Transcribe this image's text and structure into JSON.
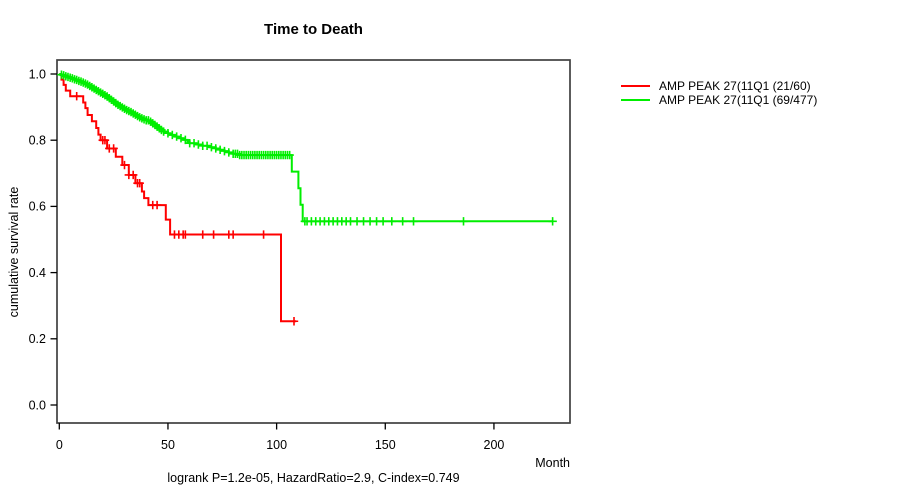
{
  "title": "Time to Death",
  "axes": {
    "xlabel": "Month",
    "ylabel": "cumulative survival rate"
  },
  "footer": "logrank P=1.2e-05, HazardRatio=2.9, C-index=0.749",
  "legend": {
    "items": [
      {
        "label": "AMP PEAK 27(11Q1 (21/60)",
        "color": "#ff0000"
      },
      {
        "label": "AMP PEAK 27(11Q1 (69/477)",
        "color": "#00ee00"
      }
    ]
  },
  "chart_data": {
    "type": "line",
    "subtype": "kaplan-meier-step",
    "title": "Time to Death",
    "xlabel": "Month",
    "ylabel": "cumulative survival rate",
    "xlim": [
      0,
      235
    ],
    "ylim": [
      0.0,
      1.0
    ],
    "grid": false,
    "legend_position": "right-outside",
    "xticks": [
      {
        "v": 0,
        "label": "0"
      },
      {
        "v": 50,
        "label": "50"
      },
      {
        "v": 100,
        "label": "100"
      },
      {
        "v": 150,
        "label": "150"
      },
      {
        "v": 200,
        "label": "200"
      }
    ],
    "yticks": [
      {
        "v": 0.0,
        "label": "0.0"
      },
      {
        "v": 0.2,
        "label": "0.2"
      },
      {
        "v": 0.4,
        "label": "0.4"
      },
      {
        "v": 0.6,
        "label": "0.6"
      },
      {
        "v": 0.8,
        "label": "0.8"
      },
      {
        "v": 1.0,
        "label": "1.0"
      }
    ],
    "series": [
      {
        "name": "AMP PEAK 27(11Q1 (21/60)",
        "color": "#ff0000",
        "events_total": "21/60",
        "end_time": 109,
        "steps": [
          [
            0,
            1.0
          ],
          [
            1,
            0.983
          ],
          [
            2,
            0.967
          ],
          [
            3,
            0.95
          ],
          [
            5,
            0.933
          ],
          [
            11,
            0.914
          ],
          [
            12,
            0.897
          ],
          [
            13,
            0.876
          ],
          [
            15,
            0.857
          ],
          [
            17,
            0.837
          ],
          [
            18,
            0.817
          ],
          [
            19,
            0.8
          ],
          [
            22,
            0.775
          ],
          [
            26,
            0.75
          ],
          [
            29,
            0.725
          ],
          [
            32,
            0.695
          ],
          [
            35,
            0.67
          ],
          [
            38,
            0.645
          ],
          [
            39,
            0.625
          ],
          [
            41,
            0.604
          ],
          [
            49,
            0.56
          ],
          [
            51,
            0.515
          ],
          [
            102,
            0.253
          ]
        ],
        "censor_times": [
          8,
          20,
          21,
          23,
          25,
          30,
          32,
          34,
          36,
          37,
          43,
          45,
          53,
          55,
          57,
          58,
          66,
          71,
          78,
          80,
          94,
          108
        ]
      },
      {
        "name": "AMP PEAK 27(11Q1 (69/477)",
        "color": "#00ee00",
        "events_total": "69/477",
        "end_time": 227,
        "steps": [
          [
            0,
            1.0
          ],
          [
            1,
            0.998
          ],
          [
            2,
            0.996
          ],
          [
            3,
            0.993
          ],
          [
            4,
            0.991
          ],
          [
            5,
            0.989
          ],
          [
            6,
            0.987
          ],
          [
            7,
            0.984
          ],
          [
            8,
            0.982
          ],
          [
            9,
            0.979
          ],
          [
            10,
            0.977
          ],
          [
            11,
            0.974
          ],
          [
            12,
            0.971
          ],
          [
            13,
            0.968
          ],
          [
            14,
            0.964
          ],
          [
            15,
            0.96
          ],
          [
            16,
            0.956
          ],
          [
            17,
            0.952
          ],
          [
            18,
            0.948
          ],
          [
            19,
            0.944
          ],
          [
            20,
            0.94
          ],
          [
            21,
            0.936
          ],
          [
            22,
            0.932
          ],
          [
            23,
            0.927
          ],
          [
            24,
            0.922
          ],
          [
            25,
            0.917
          ],
          [
            26,
            0.912
          ],
          [
            27,
            0.907
          ],
          [
            28,
            0.903
          ],
          [
            29,
            0.899
          ],
          [
            30,
            0.895
          ],
          [
            31,
            0.891
          ],
          [
            32,
            0.888
          ],
          [
            33,
            0.885
          ],
          [
            34,
            0.881
          ],
          [
            35,
            0.877
          ],
          [
            36,
            0.873
          ],
          [
            37,
            0.869
          ],
          [
            38,
            0.866
          ],
          [
            39,
            0.863
          ],
          [
            40,
            0.86
          ],
          [
            42,
            0.856
          ],
          [
            43,
            0.851
          ],
          [
            44,
            0.846
          ],
          [
            45,
            0.841
          ],
          [
            46,
            0.836
          ],
          [
            47,
            0.831
          ],
          [
            48,
            0.826
          ],
          [
            50,
            0.821
          ],
          [
            51,
            0.816
          ],
          [
            53,
            0.811
          ],
          [
            55,
            0.806
          ],
          [
            57,
            0.801
          ],
          [
            59,
            0.796
          ],
          [
            60,
            0.791
          ],
          [
            63,
            0.787
          ],
          [
            66,
            0.783
          ],
          [
            69,
            0.779
          ],
          [
            72,
            0.775
          ],
          [
            74,
            0.771
          ],
          [
            76,
            0.767
          ],
          [
            78,
            0.763
          ],
          [
            80,
            0.759
          ],
          [
            83,
            0.755
          ],
          [
            107,
            0.705
          ],
          [
            110,
            0.655
          ],
          [
            111,
            0.605
          ],
          [
            112,
            0.555
          ]
        ],
        "censor_times": [
          1,
          2,
          3,
          4,
          5,
          6,
          7,
          8,
          9,
          10,
          11,
          12,
          13,
          14,
          15,
          16,
          17,
          18,
          19,
          20,
          21,
          22,
          23,
          24,
          25,
          26,
          27,
          28,
          29,
          30,
          31,
          32,
          33,
          34,
          35,
          36,
          37,
          38,
          39,
          40,
          41,
          42,
          43,
          44,
          45,
          46,
          47,
          48,
          50,
          52,
          54,
          56,
          58,
          60,
          62,
          64,
          66,
          68,
          70,
          72,
          74,
          76,
          78,
          80,
          81,
          82,
          83,
          84,
          85,
          86,
          87,
          88,
          89,
          90,
          91,
          92,
          93,
          94,
          95,
          96,
          97,
          98,
          99,
          100,
          101,
          102,
          103,
          104,
          105,
          106,
          113,
          114,
          116,
          118,
          120,
          122,
          124,
          126,
          128,
          130,
          132,
          134,
          137,
          140,
          143,
          146,
          149,
          153,
          158,
          163,
          186,
          227
        ]
      }
    ]
  }
}
